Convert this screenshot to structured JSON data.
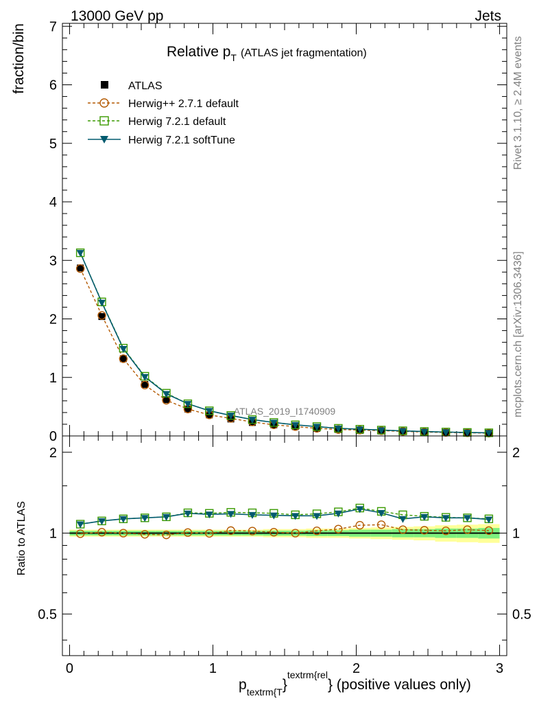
{
  "header": {
    "left": "13000 GeV pp",
    "right": "Jets"
  },
  "side_labels": {
    "rivet": "Rivet 3.1.10, ≥ 2.4M events",
    "mcplots": "mcplots.cern.ch [arXiv:1306.3436]"
  },
  "title": {
    "main": "Relative p",
    "main_sub": "T",
    "paren": "(ATLAS jet fragmentation)"
  },
  "watermark": "ATLAS_2019_I1740909",
  "xlabel": {
    "p": "p",
    "sub": "textrm{T",
    "brace": "}",
    "sup": "textrm{rel",
    "tail": "} (positive values only)"
  },
  "colors": {
    "atlas": "#000000",
    "herwigpp": "#b35900",
    "herwig721": "#3a9a00",
    "softtune": "#005a6e",
    "band_inner": "#7ef07e",
    "band_outer": "#ffff99"
  },
  "chart_data": [
    {
      "type": "line",
      "ylabel": "fraction/bin",
      "xlim": [
        -0.05,
        3.05
      ],
      "ylim": [
        0,
        7.05
      ],
      "x_ticks": [
        0,
        1,
        2,
        3
      ],
      "y_ticks": [
        0,
        1,
        2,
        3,
        4,
        5,
        6,
        7
      ],
      "legend_placement": "top-left",
      "x": [
        0.075,
        0.225,
        0.375,
        0.525,
        0.675,
        0.825,
        0.975,
        1.125,
        1.275,
        1.425,
        1.575,
        1.725,
        1.875,
        2.025,
        2.175,
        2.325,
        2.475,
        2.625,
        2.775,
        2.925
      ],
      "series": [
        {
          "name": "ATLAS",
          "values": [
            2.87,
            2.04,
            1.32,
            0.88,
            0.62,
            0.46,
            0.36,
            0.29,
            0.23,
            0.19,
            0.16,
            0.13,
            0.11,
            0.095,
            0.085,
            0.075,
            0.065,
            0.058,
            0.052,
            0.047
          ]
        },
        {
          "name": "Herwig++ 2.7.1 default",
          "values": [
            2.86,
            2.06,
            1.32,
            0.87,
            0.61,
            0.46,
            0.36,
            0.3,
            0.24,
            0.19,
            0.16,
            0.13,
            0.11,
            0.1,
            0.09,
            0.078,
            0.067,
            0.059,
            0.054,
            0.048
          ]
        },
        {
          "name": "Herwig 7.2.1 default",
          "values": [
            3.13,
            2.29,
            1.5,
            1.02,
            0.73,
            0.55,
            0.43,
            0.35,
            0.28,
            0.23,
            0.19,
            0.16,
            0.13,
            0.115,
            0.1,
            0.088,
            0.076,
            0.067,
            0.06,
            0.054
          ]
        },
        {
          "name": "Herwig 7.2.1 softTune",
          "values": [
            3.13,
            2.28,
            1.49,
            1.01,
            0.72,
            0.55,
            0.43,
            0.35,
            0.28,
            0.23,
            0.19,
            0.16,
            0.13,
            0.115,
            0.1,
            0.086,
            0.075,
            0.066,
            0.059,
            0.053
          ]
        }
      ]
    },
    {
      "type": "line",
      "ylabel": "Ratio to ATLAS",
      "xlim": [
        -0.05,
        3.05
      ],
      "ylim": [
        0.35,
        2.3
      ],
      "log_scale": true,
      "x_ticks": [
        0,
        1,
        2,
        3
      ],
      "y_ticks": [
        0.5,
        1,
        2
      ],
      "x": [
        0.075,
        0.225,
        0.375,
        0.525,
        0.675,
        0.825,
        0.975,
        1.125,
        1.275,
        1.425,
        1.575,
        1.725,
        1.875,
        2.025,
        2.175,
        2.325,
        2.475,
        2.625,
        2.775,
        2.925
      ],
      "band_inner_halfwidth": [
        0.02,
        0.02,
        0.02,
        0.02,
        0.02,
        0.02,
        0.02,
        0.02,
        0.02,
        0.022,
        0.022,
        0.025,
        0.025,
        0.03,
        0.03,
        0.035,
        0.035,
        0.04,
        0.04,
        0.045
      ],
      "band_outer_halfwidth": [
        0.03,
        0.03,
        0.03,
        0.03,
        0.03,
        0.03,
        0.03,
        0.03,
        0.03,
        0.035,
        0.035,
        0.04,
        0.04,
        0.045,
        0.05,
        0.055,
        0.06,
        0.07,
        0.075,
        0.08
      ],
      "series": [
        {
          "name": "Herwig++ 2.7.1 default",
          "values": [
            0.995,
            1.008,
            1.0,
            0.99,
            0.985,
            1.005,
            0.998,
            1.022,
            1.018,
            1.008,
            1.0,
            1.02,
            1.035,
            1.07,
            1.075,
            1.03,
            1.025,
            1.02,
            1.03,
            1.022
          ]
        },
        {
          "name": "Herwig 7.2.1 default",
          "values": [
            1.08,
            1.11,
            1.13,
            1.14,
            1.15,
            1.19,
            1.185,
            1.195,
            1.19,
            1.185,
            1.17,
            1.18,
            1.2,
            1.24,
            1.205,
            1.17,
            1.155,
            1.145,
            1.14,
            1.13
          ]
        },
        {
          "name": "Herwig 7.2.1 softTune",
          "values": [
            1.08,
            1.11,
            1.13,
            1.14,
            1.15,
            1.185,
            1.175,
            1.18,
            1.17,
            1.165,
            1.16,
            1.16,
            1.185,
            1.23,
            1.19,
            1.13,
            1.15,
            1.14,
            1.14,
            1.125
          ]
        }
      ]
    }
  ]
}
